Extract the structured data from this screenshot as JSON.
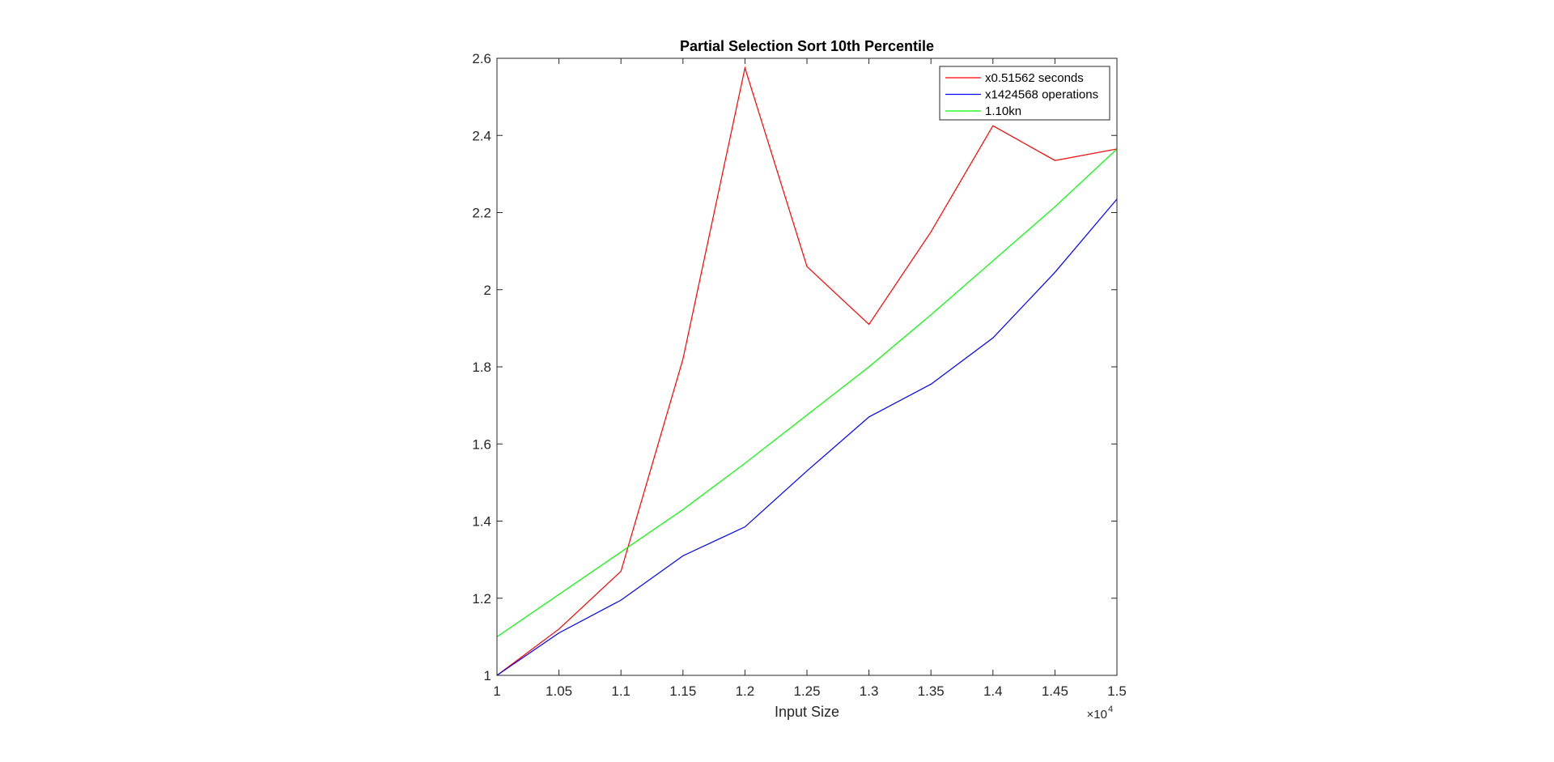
{
  "chart_data": {
    "type": "line",
    "title": "Partial Selection Sort 10th Percentile",
    "xlabel": "Input Size",
    "ylabel": "",
    "x_exponent_label": "×10",
    "x_exponent_power": "4",
    "xlim": [
      1,
      1.5
    ],
    "ylim": [
      1,
      2.6
    ],
    "x_ticks": [
      1,
      1.05,
      1.1,
      1.15,
      1.2,
      1.25,
      1.3,
      1.35,
      1.4,
      1.45,
      1.5
    ],
    "x_tick_labels": [
      "1",
      "1.05",
      "1.1",
      "1.15",
      "1.2",
      "1.25",
      "1.3",
      "1.35",
      "1.4",
      "1.45",
      "1.5"
    ],
    "y_ticks": [
      1,
      1.2,
      1.4,
      1.6,
      1.8,
      2,
      2.2,
      2.4,
      2.6
    ],
    "y_tick_labels": [
      "1",
      "1.2",
      "1.4",
      "1.6",
      "1.8",
      "2",
      "2.2",
      "2.4",
      "2.6"
    ],
    "grid": false,
    "legend_position": "top-right",
    "x": [
      1,
      1.05,
      1.1,
      1.15,
      1.2,
      1.25,
      1.3,
      1.35,
      1.4,
      1.45,
      1.5
    ],
    "series": [
      {
        "name": "x0.51562 seconds",
        "color": "#ff0000",
        "values": [
          1.0,
          1.12,
          1.27,
          1.82,
          2.575,
          2.06,
          1.91,
          2.15,
          2.425,
          2.335,
          2.365
        ]
      },
      {
        "name": "x1424568 operations",
        "color": "#0000ff",
        "values": [
          1.0,
          1.11,
          1.195,
          1.31,
          1.385,
          1.53,
          1.67,
          1.755,
          1.875,
          2.045,
          2.235
        ]
      },
      {
        "name": "1.10kn",
        "color": "#00ff00",
        "values": [
          1.1,
          1.21,
          1.32,
          1.43,
          1.55,
          1.675,
          1.8,
          1.935,
          2.075,
          2.215,
          2.365
        ]
      }
    ]
  }
}
